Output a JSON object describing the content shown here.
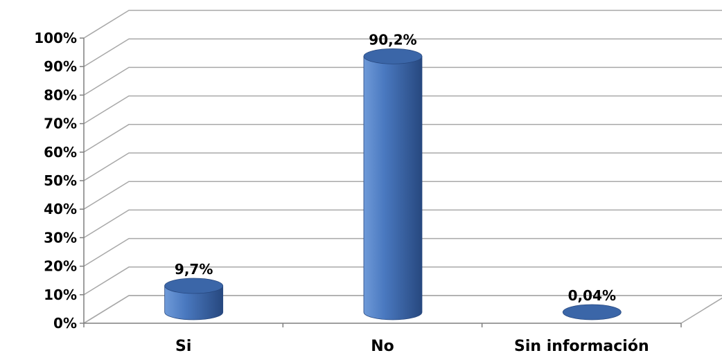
{
  "chart_data": {
    "type": "bar",
    "style": "3d-cylinder",
    "categories": [
      "Si",
      "No",
      "Sin información"
    ],
    "values": [
      9.7,
      90.2,
      0.04
    ],
    "data_labels": [
      "9,7%",
      "90,2%",
      "0,04%"
    ],
    "ylim": [
      0,
      100
    ],
    "yticks": [
      0,
      10,
      20,
      30,
      40,
      50,
      60,
      70,
      80,
      90,
      100
    ],
    "ytick_labels": [
      "0%",
      "10%",
      "20%",
      "30%",
      "40%",
      "50%",
      "60%",
      "70%",
      "80%",
      "90%",
      "100%"
    ],
    "title": "",
    "xlabel": "",
    "ylabel": "",
    "grid": true,
    "legend": false,
    "colors": {
      "bar_light": "#6f9ad8",
      "bar_mid": "#4a79c0",
      "bar_dark": "#27487f",
      "bar_top": "#3b66a8",
      "grid": "#a8a8a8",
      "axis": "#7f7f7f"
    }
  }
}
